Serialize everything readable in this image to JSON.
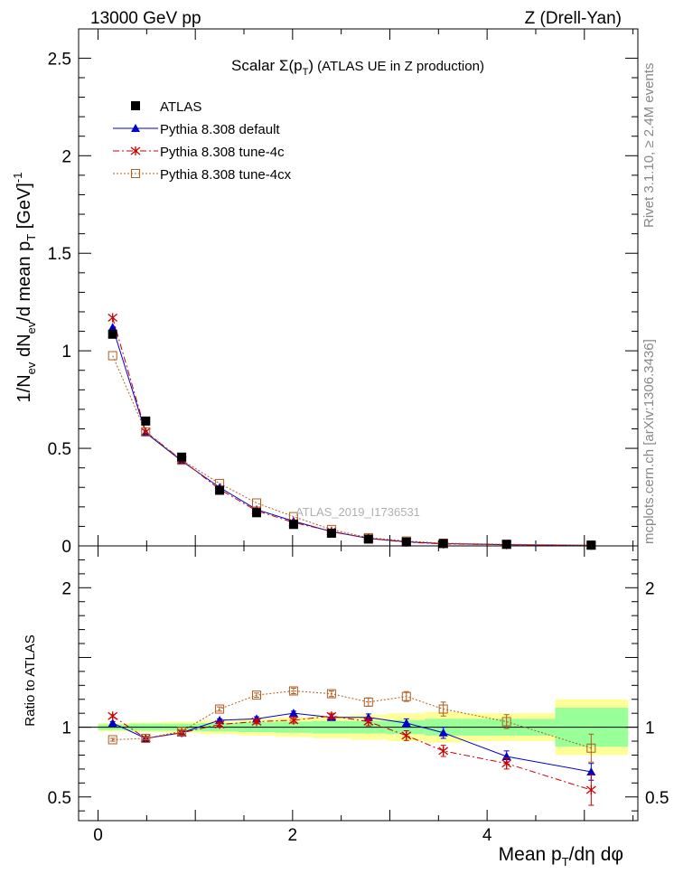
{
  "header": {
    "left": "13000 GeV pp",
    "right": "Z (Drell-Yan)"
  },
  "side_labels": {
    "rivet": "Rivet 3.1.10, ≥ 2.4M events",
    "mcplots": "mcplots.cern.ch [arXiv:1306.3436]"
  },
  "chart_data": {
    "type": "line",
    "title_prefix": "Scalar ",
    "title_symbol": "Σ(p",
    "title_sub": "T",
    "title_close": ")",
    "title_suffix": " (ATLAS UE in Z production)",
    "watermark": "ATLAS_2019_I1736531",
    "xlabel": "Mean p",
    "xlabel_sub": "T",
    "xlabel_tail": "/dη dφ",
    "ylabel_main_parts": [
      "1/N",
      "ev",
      " dN",
      "ev",
      "/d mean p",
      "T",
      " [GeV]",
      "-1"
    ],
    "ylabel_ratio": "Ratio to ATLAS",
    "xlim": [
      -0.2,
      5.55
    ],
    "ylim_main": [
      0,
      2.65
    ],
    "ylim_ratio": [
      0.33,
      2.3
    ],
    "x_ticks": [
      "0",
      "2",
      "4"
    ],
    "y_ticks_main": [
      "0",
      "0.5",
      "1",
      "1.5",
      "2",
      "2.5"
    ],
    "y_ticks_ratio": [
      "0.5",
      "1",
      "2"
    ],
    "x": [
      0.15,
      0.49,
      0.86,
      1.25,
      1.63,
      2.01,
      2.4,
      2.78,
      3.17,
      3.55,
      4.2,
      5.07
    ],
    "data_bins": [
      [
        0.0,
        0.32
      ],
      [
        0.32,
        0.68
      ],
      [
        0.68,
        1.05
      ],
      [
        1.05,
        1.44
      ],
      [
        1.44,
        1.82
      ],
      [
        1.82,
        2.2
      ],
      [
        2.2,
        2.59
      ],
      [
        2.59,
        2.97
      ],
      [
        2.97,
        3.36
      ],
      [
        3.36,
        3.74
      ],
      [
        3.74,
        4.7
      ],
      [
        4.7,
        5.45
      ]
    ],
    "atlas": [
      1.085,
      0.64,
      0.455,
      0.285,
      0.17,
      0.11,
      0.065,
      0.035,
      0.02,
      0.012,
      0.008,
      0.004
    ],
    "band_stat": [
      0.02,
      0.025,
      0.025,
      0.03,
      0.035,
      0.04,
      0.045,
      0.045,
      0.05,
      0.06,
      0.06,
      0.14
    ],
    "band_total": [
      0.03,
      0.035,
      0.04,
      0.05,
      0.06,
      0.07,
      0.08,
      0.09,
      0.1,
      0.11,
      0.1,
      0.2
    ],
    "series": [
      {
        "name": "Pythia 8.308 default",
        "color": "#0000cc",
        "marker": "triangle",
        "dash": "",
        "values": [
          1.12,
          0.58,
          0.435,
          0.3,
          0.186,
          0.127,
          0.073,
          0.039,
          0.021,
          0.0116,
          0.0063,
          0.0027
        ],
        "ratio": [
          1.03,
          0.92,
          0.96,
          1.05,
          1.06,
          1.1,
          1.07,
          1.07,
          1.03,
          0.96,
          0.79,
          0.68
        ],
        "ratio_err": [
          0.01,
          0.01,
          0.01,
          0.01,
          0.015,
          0.015,
          0.02,
          0.025,
          0.03,
          0.04,
          0.04,
          0.06
        ]
      },
      {
        "name": "Pythia 8.308 tune-4c",
        "color": "#cc0000",
        "marker": "star",
        "dash": "7 3 2 3",
        "values": [
          1.17,
          0.585,
          0.44,
          0.29,
          0.18,
          0.12,
          0.075,
          0.038,
          0.019,
          0.01,
          0.006,
          0.0022
        ],
        "ratio": [
          1.08,
          0.92,
          0.96,
          1.02,
          1.04,
          1.05,
          1.08,
          1.04,
          0.94,
          0.83,
          0.74,
          0.55
        ],
        "ratio_err": [
          0.01,
          0.01,
          0.01,
          0.015,
          0.015,
          0.02,
          0.02,
          0.03,
          0.035,
          0.04,
          0.04,
          0.11
        ]
      },
      {
        "name": "Pythia 8.308 tune-4cx",
        "color": "#b35c1e",
        "marker": "square",
        "dash": "2 2",
        "values": [
          0.975,
          0.585,
          0.44,
          0.32,
          0.22,
          0.15,
          0.084,
          0.042,
          0.025,
          0.014,
          0.0084,
          0.0034
        ],
        "ratio": [
          0.91,
          0.92,
          0.97,
          1.13,
          1.23,
          1.26,
          1.24,
          1.18,
          1.22,
          1.13,
          1.04,
          0.85
        ],
        "ratio_err": [
          0.01,
          0.01,
          0.01,
          0.015,
          0.015,
          0.02,
          0.02,
          0.03,
          0.035,
          0.05,
          0.05,
          0.1
        ]
      }
    ],
    "legend": {
      "data_label": "ATLAS",
      "placement": "top-left"
    }
  }
}
